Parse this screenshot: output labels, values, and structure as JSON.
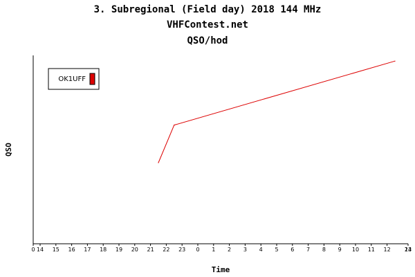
{
  "header": {
    "title": "3. Subregional (Field day) 2018 144 MHz",
    "subtitle": "VHFContest.net",
    "metric": "QSO/hod"
  },
  "chart_data": {
    "type": "line",
    "title": "3. Subregional (Field day) 2018 144 MHz",
    "subtitle": "VHFContest.net",
    "metric_label": "QSO/hod",
    "xlabel": "Time",
    "ylabel": "QSO",
    "x_tick_labels": [
      "0",
      "14",
      "15",
      "16",
      "17",
      "18",
      "19",
      "20",
      "21",
      "22",
      "23",
      "0",
      "1",
      "2",
      "3",
      "4",
      "5",
      "6",
      "7",
      "8",
      "9",
      "10",
      "11",
      "12",
      "13",
      "24"
    ],
    "x_unit": "hours elapsed since 13:00 (start of contest), 0 to 24",
    "xlim": [
      0,
      24
    ],
    "ylim": [
      0,
      10
    ],
    "y_ticks_shown": false,
    "grid": false,
    "legend_position": "top-left",
    "series": [
      {
        "name": "OK1UFF",
        "color": "#dd0000",
        "x": [
          8.5,
          9.5,
          23.5
        ],
        "y": [
          4.3,
          6.3,
          9.7
        ]
      }
    ]
  }
}
